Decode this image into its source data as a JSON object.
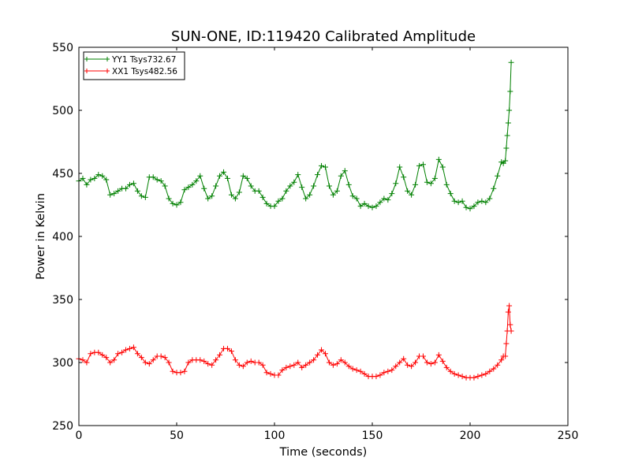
{
  "chart_data": {
    "type": "line",
    "title": "SUN-ONE, ID:119420 Calibrated Amplitude",
    "xlabel": "Time (seconds)",
    "ylabel": "Power in Kelvin",
    "xlim": [
      0,
      250
    ],
    "ylim": [
      250,
      550
    ],
    "xticks": [
      0,
      50,
      100,
      150,
      200,
      250
    ],
    "yticks": [
      250,
      300,
      350,
      400,
      450,
      500,
      550
    ],
    "grid": false,
    "legend_position": "top-left",
    "marker": "plus",
    "series": [
      {
        "name": "YY1 Tsys732.67",
        "color": "#008000",
        "x": [
          0,
          2,
          4,
          6,
          8,
          10,
          12,
          14,
          16,
          18,
          20,
          22,
          24,
          26,
          28,
          30,
          32,
          34,
          36,
          38,
          40,
          42,
          44,
          46,
          48,
          50,
          52,
          54,
          56,
          58,
          60,
          62,
          64,
          66,
          68,
          70,
          72,
          74,
          76,
          78,
          80,
          82,
          84,
          86,
          88,
          90,
          92,
          94,
          96,
          98,
          100,
          102,
          104,
          106,
          108,
          110,
          112,
          114,
          116,
          118,
          120,
          122,
          124,
          126,
          128,
          130,
          132,
          134,
          136,
          138,
          140,
          142,
          144,
          146,
          148,
          150,
          152,
          154,
          156,
          158,
          160,
          162,
          164,
          166,
          168,
          170,
          172,
          174,
          176,
          178,
          180,
          182,
          184,
          186,
          188,
          190,
          192,
          194,
          196,
          198,
          200,
          202,
          204,
          206,
          208,
          210,
          212,
          214,
          216,
          217,
          218,
          218.5,
          219,
          219.5,
          220,
          220.5,
          221
        ],
        "values": [
          444,
          446,
          441,
          445,
          446,
          449,
          448,
          445,
          433,
          434,
          436,
          438,
          438,
          441,
          442,
          436,
          432,
          431,
          447,
          447,
          445,
          444,
          440,
          430,
          426,
          425,
          427,
          437,
          439,
          441,
          444,
          448,
          438,
          430,
          432,
          440,
          448,
          451,
          446,
          433,
          430,
          435,
          448,
          446,
          440,
          436,
          436,
          431,
          426,
          424,
          424,
          428,
          430,
          436,
          440,
          443,
          449,
          439,
          430,
          433,
          440,
          449,
          456,
          455,
          440,
          433,
          436,
          448,
          452,
          441,
          432,
          430,
          424,
          426,
          424,
          423,
          424,
          427,
          430,
          429,
          434,
          442,
          455,
          447,
          436,
          433,
          441,
          456,
          457,
          443,
          442,
          446,
          461,
          455,
          441,
          434,
          428,
          427,
          428,
          423,
          422,
          424,
          427,
          428,
          427,
          430,
          438,
          448,
          459,
          458,
          460,
          470,
          480,
          490,
          500,
          515,
          538
        ]
      },
      {
        "name": "XX1 Tsys482.56",
        "color": "#ff0000",
        "x": [
          0,
          2,
          4,
          6,
          8,
          10,
          12,
          14,
          16,
          18,
          20,
          22,
          24,
          26,
          28,
          30,
          32,
          34,
          36,
          38,
          40,
          42,
          44,
          46,
          48,
          50,
          52,
          54,
          56,
          58,
          60,
          62,
          64,
          66,
          68,
          70,
          72,
          74,
          76,
          78,
          80,
          82,
          84,
          86,
          88,
          90,
          92,
          94,
          96,
          98,
          100,
          102,
          104,
          106,
          108,
          110,
          112,
          114,
          116,
          118,
          120,
          122,
          124,
          126,
          128,
          130,
          132,
          134,
          136,
          138,
          140,
          142,
          144,
          146,
          148,
          150,
          152,
          154,
          156,
          158,
          160,
          162,
          164,
          166,
          168,
          170,
          172,
          174,
          176,
          178,
          180,
          182,
          184,
          186,
          188,
          190,
          192,
          194,
          196,
          198,
          200,
          202,
          204,
          206,
          208,
          210,
          212,
          214,
          216,
          217,
          218,
          218.5,
          219,
          219.5,
          220,
          220.5,
          221
        ],
        "values": [
          303,
          302,
          300,
          307,
          308,
          308,
          306,
          304,
          300,
          302,
          307,
          308,
          310,
          311,
          312,
          307,
          304,
          300,
          299,
          302,
          305,
          305,
          304,
          300,
          293,
          292,
          292,
          293,
          300,
          302,
          302,
          302,
          301,
          299,
          298,
          302,
          306,
          311,
          311,
          309,
          302,
          298,
          297,
          300,
          301,
          300,
          300,
          298,
          292,
          291,
          290,
          290,
          294,
          296,
          297,
          298,
          300,
          296,
          298,
          300,
          302,
          306,
          310,
          307,
          300,
          298,
          299,
          302,
          300,
          297,
          295,
          294,
          293,
          291,
          289,
          289,
          289,
          290,
          292,
          293,
          294,
          297,
          300,
          303,
          298,
          297,
          300,
          305,
          305,
          300,
          299,
          300,
          306,
          301,
          296,
          293,
          291,
          290,
          289,
          288,
          288,
          288,
          289,
          290,
          291,
          293,
          295,
          298,
          302,
          305,
          305,
          315,
          325,
          340,
          345,
          330,
          325
        ]
      }
    ]
  }
}
